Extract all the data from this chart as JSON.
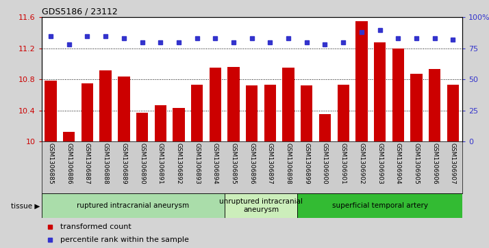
{
  "title": "GDS5186 / 23112",
  "samples": [
    "GSM1306885",
    "GSM1306886",
    "GSM1306887",
    "GSM1306888",
    "GSM1306889",
    "GSM1306890",
    "GSM1306891",
    "GSM1306892",
    "GSM1306893",
    "GSM1306894",
    "GSM1306895",
    "GSM1306896",
    "GSM1306897",
    "GSM1306898",
    "GSM1306899",
    "GSM1306900",
    "GSM1306901",
    "GSM1306902",
    "GSM1306903",
    "GSM1306904",
    "GSM1306905",
    "GSM1306906",
    "GSM1306907"
  ],
  "transformed_count": [
    10.78,
    10.12,
    10.75,
    10.92,
    10.84,
    10.37,
    10.47,
    10.43,
    10.73,
    10.95,
    10.96,
    10.72,
    10.73,
    10.95,
    10.72,
    10.35,
    10.73,
    11.55,
    11.28,
    11.2,
    10.87,
    10.93,
    10.73
  ],
  "percentile_rank": [
    85,
    78,
    85,
    85,
    83,
    80,
    80,
    80,
    83,
    83,
    80,
    83,
    80,
    83,
    80,
    78,
    80,
    88,
    90,
    83,
    83,
    83,
    82
  ],
  "ylim_left": [
    10.0,
    11.6
  ],
  "ylim_right": [
    0,
    100
  ],
  "yticks_left": [
    10.0,
    10.4,
    10.8,
    11.2,
    11.6
  ],
  "ytick_labels_left": [
    "10",
    "10.4",
    "10.8",
    "11.2",
    "11.6"
  ],
  "yticks_right": [
    0,
    25,
    50,
    75,
    100
  ],
  "ytick_labels_right": [
    "0",
    "25",
    "50",
    "75",
    "100%"
  ],
  "bar_color": "#cc0000",
  "dot_color": "#3333cc",
  "bg_color": "#d4d4d4",
  "xtick_bg_color": "#cccccc",
  "plot_bg_color": "#ffffff",
  "tissue_groups": [
    {
      "label": "ruptured intracranial aneurysm",
      "start": 0,
      "end": 10,
      "color": "#aaddaa"
    },
    {
      "label": "unruptured intracranial\naneurysm",
      "start": 10,
      "end": 14,
      "color": "#cceebb"
    },
    {
      "label": "superficial temporal artery",
      "start": 14,
      "end": 23,
      "color": "#33bb33"
    }
  ],
  "legend_items": [
    {
      "label": "transformed count",
      "color": "#cc0000"
    },
    {
      "label": "percentile rank within the sample",
      "color": "#3333cc"
    }
  ],
  "grid_yticks": [
    10.4,
    10.8,
    11.2
  ],
  "fig_width": 7.14,
  "fig_height": 3.63
}
